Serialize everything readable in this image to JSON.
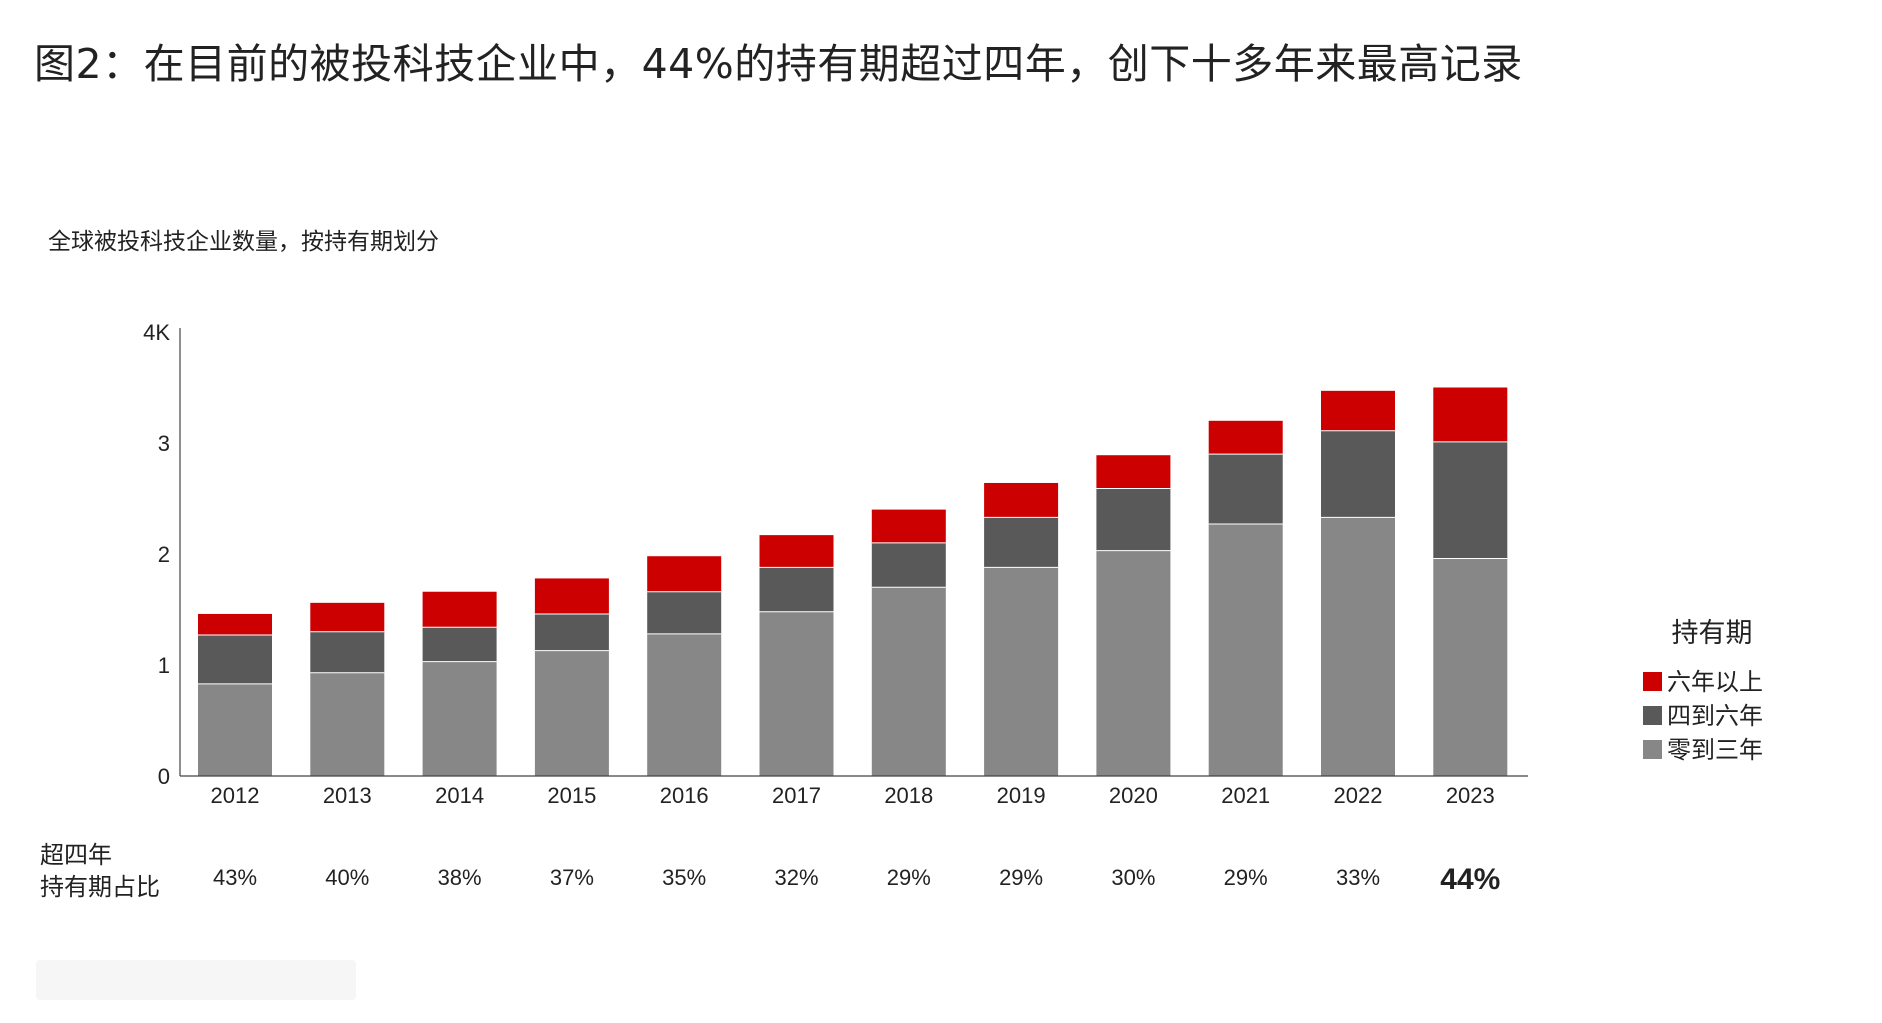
{
  "title": "图2：在目前的被投科技企业中，44%的持有期超过四年，创下十多年来最高记录",
  "chart_data": {
    "type": "bar",
    "stacked": true,
    "subtitle": "全球被投科技企业数量，按持有期划分",
    "categories": [
      "2012",
      "2013",
      "2014",
      "2015",
      "2016",
      "2017",
      "2018",
      "2019",
      "2020",
      "2021",
      "2022",
      "2023"
    ],
    "y_ticks": [
      "0",
      "1",
      "2",
      "3",
      "4K"
    ],
    "ylim": [
      0,
      4
    ],
    "series": [
      {
        "name": "零到三年",
        "color": "#878787",
        "values": [
          0.83,
          0.93,
          1.03,
          1.13,
          1.28,
          1.48,
          1.7,
          1.88,
          2.03,
          2.27,
          2.33,
          1.96
        ]
      },
      {
        "name": "四到六年",
        "color": "#595959",
        "values": [
          0.44,
          0.37,
          0.31,
          0.33,
          0.38,
          0.4,
          0.4,
          0.45,
          0.56,
          0.63,
          0.78,
          1.05
        ]
      },
      {
        "name": "六年以上",
        "color": "#cc0000",
        "values": [
          0.19,
          0.26,
          0.32,
          0.32,
          0.32,
          0.29,
          0.3,
          0.31,
          0.3,
          0.3,
          0.36,
          0.49
        ]
      }
    ],
    "legend": {
      "title": "持有期",
      "placement": "right"
    },
    "share_row": {
      "label_line1": "超四年",
      "label_line2": "持有期占比",
      "values": [
        "43%",
        "40%",
        "38%",
        "37%",
        "35%",
        "32%",
        "29%",
        "29%",
        "30%",
        "29%",
        "33%",
        "44%"
      ],
      "highlight_index": 11,
      "highlight_color": "#cc0000"
    },
    "grid": false
  }
}
